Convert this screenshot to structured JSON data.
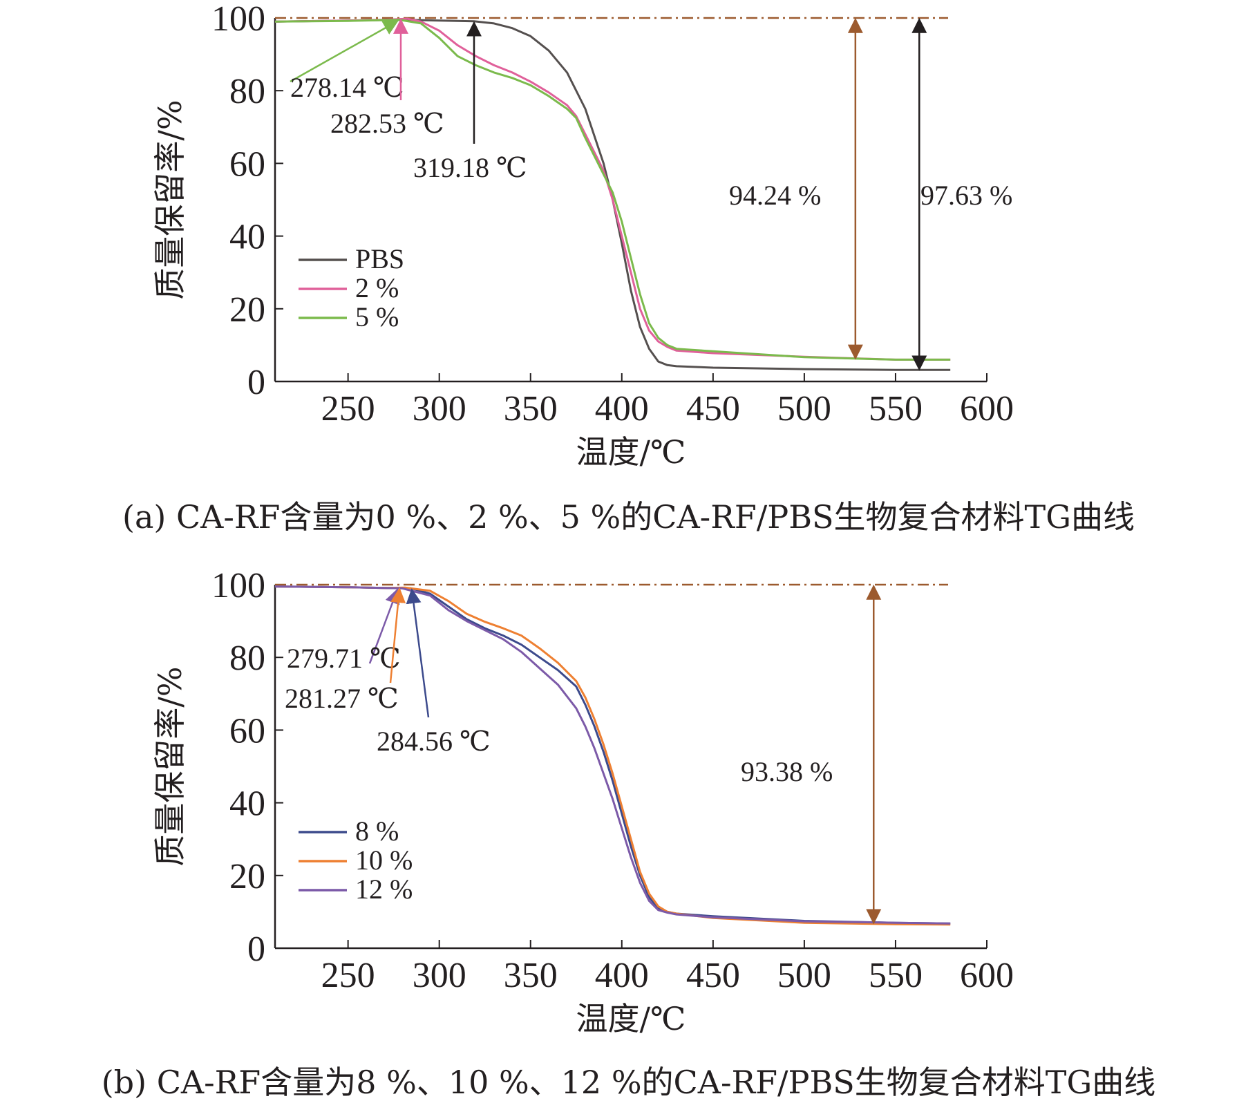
{
  "colors": {
    "PBS": "#55504f",
    "2 %": "#e0609a",
    "5 %": "#7bba4c",
    "8 %": "#3c4a8c",
    "10 %": "#ee8032",
    "12 %": "#7c5aa8",
    "reference": "#9c5a2e",
    "arrow_black": "#231f20"
  },
  "chart_data": [
    {
      "type": "line",
      "caption": "(a) CA-RF含量为0 %、2 %、5 %的CA-RF/PBS生物复合材料TG曲线",
      "xlabel": "温度/℃",
      "ylabel": "质量保留率/%",
      "xlim": [
        210,
        600
      ],
      "ylim": [
        0,
        100
      ],
      "xticks": [
        250,
        300,
        350,
        400,
        450,
        500,
        550,
        600
      ],
      "yticks": [
        0,
        20,
        40,
        60,
        80,
        100
      ],
      "grid": false,
      "legend_position": "lower-left",
      "reference_line": {
        "y": 100,
        "style": "dash-dot"
      },
      "series": [
        {
          "name": "PBS",
          "x": [
            210,
            250,
            280,
            300,
            319,
            330,
            340,
            350,
            360,
            370,
            380,
            390,
            395,
            400,
            405,
            410,
            415,
            420,
            425,
            430,
            450,
            500,
            550,
            580
          ],
          "y": [
            99,
            99.3,
            99.5,
            99.3,
            99.1,
            98.5,
            97.2,
            95,
            91,
            85,
            75,
            60,
            50,
            38,
            25,
            15,
            9,
            5.5,
            4.5,
            4.2,
            3.8,
            3.4,
            3.2,
            3.2
          ]
        },
        {
          "name": "2 %",
          "x": [
            210,
            250,
            270,
            282.53,
            290,
            300,
            310,
            320,
            330,
            340,
            350,
            360,
            370,
            375,
            380,
            390,
            395,
            400,
            405,
            410,
            415,
            420,
            425,
            430,
            450,
            500,
            550,
            580
          ],
          "y": [
            99,
            99.3,
            99.5,
            99.8,
            99,
            96.5,
            92.5,
            89.5,
            87,
            85,
            82.5,
            79.5,
            76,
            73,
            68,
            58,
            50,
            40,
            30,
            20,
            14,
            11,
            9.5,
            8.5,
            7.8,
            6.8,
            6,
            6
          ]
        },
        {
          "name": "5 %",
          "x": [
            210,
            250,
            278.14,
            290,
            300,
            310,
            320,
            330,
            340,
            350,
            360,
            370,
            375,
            380,
            390,
            395,
            400,
            405,
            410,
            415,
            420,
            425,
            430,
            450,
            500,
            550,
            580
          ],
          "y": [
            99,
            99.2,
            99.5,
            98.5,
            94.5,
            89.5,
            87,
            85,
            83.5,
            81.5,
            78.5,
            75,
            72.5,
            67,
            57,
            52,
            44,
            34,
            24,
            16,
            12,
            10,
            9,
            8.3,
            6.7,
            6,
            6
          ]
        }
      ],
      "onset_annotations": [
        {
          "label": "278.14 ℃",
          "x": 278.14,
          "series": "5 %"
        },
        {
          "label": "282.53 ℃",
          "x": 282.53,
          "series": "2 %"
        },
        {
          "label": "319.18 ℃",
          "x": 319.18,
          "series": "PBS"
        }
      ],
      "loss_annotations": [
        {
          "label": "94.24 %",
          "x": 528,
          "from": 100,
          "to": 6,
          "series": "5 %"
        },
        {
          "label": "97.63 %",
          "x": 563,
          "from": 100,
          "to": 3,
          "series": "PBS"
        }
      ]
    },
    {
      "type": "line",
      "caption": "(b) CA-RF含量为8 %、10 %、12 %的CA-RF/PBS生物复合材料TG曲线",
      "xlabel": "温度/℃",
      "ylabel": "质量保留率/%",
      "xlim": [
        210,
        600
      ],
      "ylim": [
        0,
        100
      ],
      "xticks": [
        250,
        300,
        350,
        400,
        450,
        500,
        550,
        600
      ],
      "yticks": [
        0,
        20,
        40,
        60,
        80,
        100
      ],
      "grid": false,
      "legend_position": "lower-left",
      "reference_line": {
        "y": 100,
        "style": "dash-dot"
      },
      "series": [
        {
          "name": "8 %",
          "x": [
            210,
            250,
            270,
            284.56,
            295,
            305,
            315,
            325,
            335,
            345,
            355,
            365,
            375,
            380,
            385,
            390,
            395,
            400,
            405,
            410,
            415,
            420,
            425,
            430,
            450,
            500,
            550,
            580
          ],
          "y": [
            99.5,
            99.3,
            99.1,
            99,
            97.5,
            94,
            90.5,
            88,
            86,
            83.5,
            80,
            76.5,
            72,
            67,
            61,
            54,
            46,
            37,
            28,
            20,
            14,
            11,
            10,
            9.5,
            8.8,
            7.5,
            7,
            6.8
          ]
        },
        {
          "name": "10 %",
          "x": [
            210,
            250,
            270,
            281.27,
            295,
            305,
            315,
            325,
            335,
            345,
            355,
            365,
            375,
            380,
            385,
            390,
            395,
            400,
            405,
            410,
            415,
            420,
            425,
            430,
            450,
            500,
            550,
            580
          ],
          "y": [
            99.5,
            99.3,
            99.1,
            99.2,
            98.3,
            95.5,
            92,
            89.8,
            88,
            86,
            82.5,
            78.5,
            73.5,
            69,
            63,
            56,
            48,
            39,
            30,
            21,
            15,
            11.5,
            10,
            9.5,
            8.3,
            7,
            6.6,
            6.5
          ]
        },
        {
          "name": "12 %",
          "x": [
            210,
            250,
            270,
            279.71,
            295,
            305,
            315,
            325,
            335,
            345,
            355,
            365,
            375,
            380,
            385,
            390,
            395,
            400,
            405,
            410,
            415,
            420,
            425,
            430,
            450,
            500,
            550,
            580
          ],
          "y": [
            99.5,
            99.3,
            99.1,
            99,
            97,
            93,
            90,
            87.5,
            85,
            81.5,
            77,
            72.5,
            66,
            61,
            55,
            48,
            41,
            33,
            25,
            18,
            13,
            10.5,
            9.8,
            9.3,
            8.5,
            7.4,
            7,
            6.8
          ]
        }
      ],
      "onset_annotations": [
        {
          "label": "279.71 ℃",
          "x": 279.71,
          "series": "12 %"
        },
        {
          "label": "281.27 ℃",
          "x": 281.27,
          "series": "10 %"
        },
        {
          "label": "284.56 ℃",
          "x": 284.56,
          "series": "8 %"
        }
      ],
      "loss_annotations": [
        {
          "label": "93.38 %",
          "x": 538,
          "from": 100,
          "to": 6.6,
          "series": "10 %"
        }
      ]
    }
  ]
}
